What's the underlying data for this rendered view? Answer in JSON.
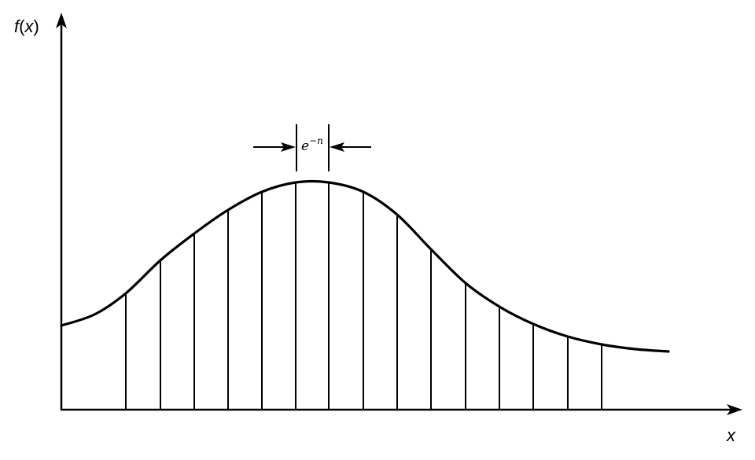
{
  "y_axis": {
    "func": "f",
    "open": "(",
    "var": "x",
    "close": ")"
  },
  "x_axis": {
    "label": "x"
  },
  "annotation": {
    "base": "e",
    "exponent": "−n"
  },
  "colors": {
    "ink": "#000000",
    "background": "#ffffff"
  }
}
